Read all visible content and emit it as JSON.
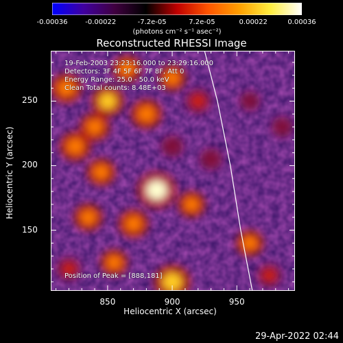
{
  "colorbar": {
    "tick_labels": [
      "-0.00036",
      "-0.00022",
      "-7.2e-05",
      "7.2e-05",
      "0.00022",
      "0.00036"
    ],
    "unit_label": "(photons cm⁻² s⁻¹ asec⁻²)",
    "range": [
      -0.00036,
      0.00036
    ],
    "colors": [
      "#0000ff",
      "#4000a0",
      "#400040",
      "#000000",
      "#c00000",
      "#ff5500",
      "#ffa000",
      "#ffee40",
      "#ffffff"
    ]
  },
  "annotations": {
    "time_range": "19-Feb-2003 23:23:16.000 to 23:29:16.000",
    "detectors": "Detectors: 3F 4F 5F 6F 7F 8F, Att 0",
    "energy": "Energy Range: 25.0 - 50.0 keV",
    "clean": "Clean     Total counts: 8.48E+03",
    "peak": "Position of Peak = [888,181]"
  },
  "footer_timestamp": "29-Apr-2022 02:44",
  "chart_data": {
    "type": "heatmap",
    "title": "Reconstructed RHESSI Image",
    "xlabel": "Heliocentric X (arcsec)",
    "ylabel": "Heliocentric Y (arcsec)",
    "xlim": [
      806,
      995
    ],
    "ylim": [
      103,
      289
    ],
    "x_ticks": [
      850,
      900,
      950
    ],
    "y_ticks": [
      150,
      200,
      250
    ],
    "peak": {
      "x": 888,
      "y": 181
    },
    "limb_curve": [
      [
        925,
        289
      ],
      [
        935,
        250
      ],
      [
        945,
        200
      ],
      [
        953,
        150
      ],
      [
        962,
        103
      ]
    ],
    "emission_blobs": [
      {
        "x": 888,
        "y": 181,
        "level": 1.0
      },
      {
        "x": 900,
        "y": 110,
        "level": 0.9
      },
      {
        "x": 870,
        "y": 155,
        "level": 0.65
      },
      {
        "x": 915,
        "y": 170,
        "level": 0.55
      },
      {
        "x": 835,
        "y": 160,
        "level": 0.6
      },
      {
        "x": 818,
        "y": 260,
        "level": 0.7
      },
      {
        "x": 850,
        "y": 250,
        "level": 0.75
      },
      {
        "x": 880,
        "y": 240,
        "level": 0.7
      },
      {
        "x": 825,
        "y": 215,
        "level": 0.7
      },
      {
        "x": 845,
        "y": 195,
        "level": 0.6
      },
      {
        "x": 900,
        "y": 268,
        "level": 0.55
      },
      {
        "x": 920,
        "y": 250,
        "level": 0.5
      },
      {
        "x": 855,
        "y": 125,
        "level": 0.55
      },
      {
        "x": 960,
        "y": 140,
        "level": 0.55
      },
      {
        "x": 975,
        "y": 115,
        "level": 0.45
      },
      {
        "x": 820,
        "y": 120,
        "level": 0.45
      },
      {
        "x": 865,
        "y": 275,
        "level": 0.6
      },
      {
        "x": 840,
        "y": 230,
        "level": 0.65
      },
      {
        "x": 900,
        "y": 215,
        "level": 0.35
      },
      {
        "x": 930,
        "y": 205,
        "level": 0.35
      },
      {
        "x": 985,
        "y": 230,
        "level": 0.3
      },
      {
        "x": 960,
        "y": 250,
        "level": 0.25
      }
    ]
  }
}
